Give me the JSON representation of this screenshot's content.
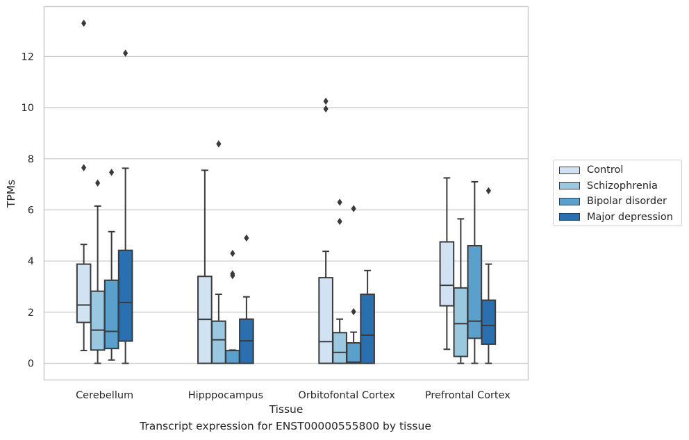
{
  "chart_data": {
    "type": "box",
    "xlabel": "Tissue",
    "ylabel": "TPMs",
    "ylim": [
      -0.65,
      13.95
    ],
    "yticks": [
      0,
      2,
      4,
      6,
      8,
      10,
      12
    ],
    "grid": "horizontal",
    "legend_position": "right",
    "categories": [
      "Cerebellum",
      "Hipppocampus",
      "Orbitofontal Cortex",
      "Prefrontal Cortex"
    ],
    "series": [
      {
        "name": "Control",
        "color": "#d1e2f2",
        "boxes": [
          {
            "whisker_low": 0.5,
            "q1": 1.6,
            "median": 2.28,
            "q3": 3.88,
            "whisker_high": 4.65,
            "outliers": [
              7.65,
              13.3
            ]
          },
          {
            "whisker_low": 0.0,
            "q1": 0.0,
            "median": 1.72,
            "q3": 3.4,
            "whisker_high": 7.55,
            "outliers": []
          },
          {
            "whisker_low": 0.0,
            "q1": 0.0,
            "median": 0.85,
            "q3": 3.35,
            "whisker_high": 4.38,
            "outliers": [
              9.95,
              10.25
            ]
          },
          {
            "whisker_low": 0.55,
            "q1": 2.25,
            "median": 3.05,
            "q3": 4.75,
            "whisker_high": 7.25,
            "outliers": []
          }
        ]
      },
      {
        "name": "Schizophrenia",
        "color": "#9ac8e0",
        "boxes": [
          {
            "whisker_low": 0.0,
            "q1": 0.52,
            "median": 1.3,
            "q3": 2.82,
            "whisker_high": 6.15,
            "outliers": [
              7.05
            ]
          },
          {
            "whisker_low": 0.0,
            "q1": 0.0,
            "median": 0.92,
            "q3": 1.65,
            "whisker_high": 2.7,
            "outliers": [
              8.58
            ]
          },
          {
            "whisker_low": 0.0,
            "q1": 0.0,
            "median": 0.43,
            "q3": 1.2,
            "whisker_high": 1.73,
            "outliers": [
              5.55,
              6.3
            ]
          },
          {
            "whisker_low": 0.0,
            "q1": 0.27,
            "median": 1.55,
            "q3": 2.95,
            "whisker_high": 5.65,
            "outliers": []
          }
        ]
      },
      {
        "name": "Bipolar disorder",
        "color": "#5aa0cd",
        "boxes": [
          {
            "whisker_low": 0.13,
            "q1": 0.58,
            "median": 1.25,
            "q3": 3.25,
            "whisker_high": 5.15,
            "outliers": [
              7.47
            ]
          },
          {
            "whisker_low": 0.0,
            "q1": 0.0,
            "median": 0.0,
            "q3": 0.5,
            "whisker_high": 0.52,
            "outliers": [
              3.43,
              3.5,
              4.3
            ]
          },
          {
            "whisker_low": 0.0,
            "q1": 0.0,
            "median": 0.05,
            "q3": 0.8,
            "whisker_high": 1.22,
            "outliers": [
              2.02,
              6.05
            ]
          },
          {
            "whisker_low": 0.0,
            "q1": 0.98,
            "median": 1.65,
            "q3": 4.6,
            "whisker_high": 7.1,
            "outliers": []
          }
        ]
      },
      {
        "name": "Major depression",
        "color": "#2a6fb0",
        "boxes": [
          {
            "whisker_low": 0.0,
            "q1": 0.87,
            "median": 2.38,
            "q3": 4.42,
            "whisker_high": 7.63,
            "outliers": [
              12.13
            ]
          },
          {
            "whisker_low": 0.0,
            "q1": 0.0,
            "median": 0.88,
            "q3": 1.73,
            "whisker_high": 2.6,
            "outliers": [
              4.9
            ]
          },
          {
            "whisker_low": 0.0,
            "q1": 0.0,
            "median": 1.1,
            "q3": 2.7,
            "whisker_high": 3.63,
            "outliers": []
          },
          {
            "whisker_low": 0.0,
            "q1": 0.75,
            "median": 1.48,
            "q3": 2.47,
            "whisker_high": 3.88,
            "outliers": [
              6.75
            ]
          }
        ]
      }
    ]
  },
  "caption": "Transcript expression for ENST00000555800 by tissue"
}
